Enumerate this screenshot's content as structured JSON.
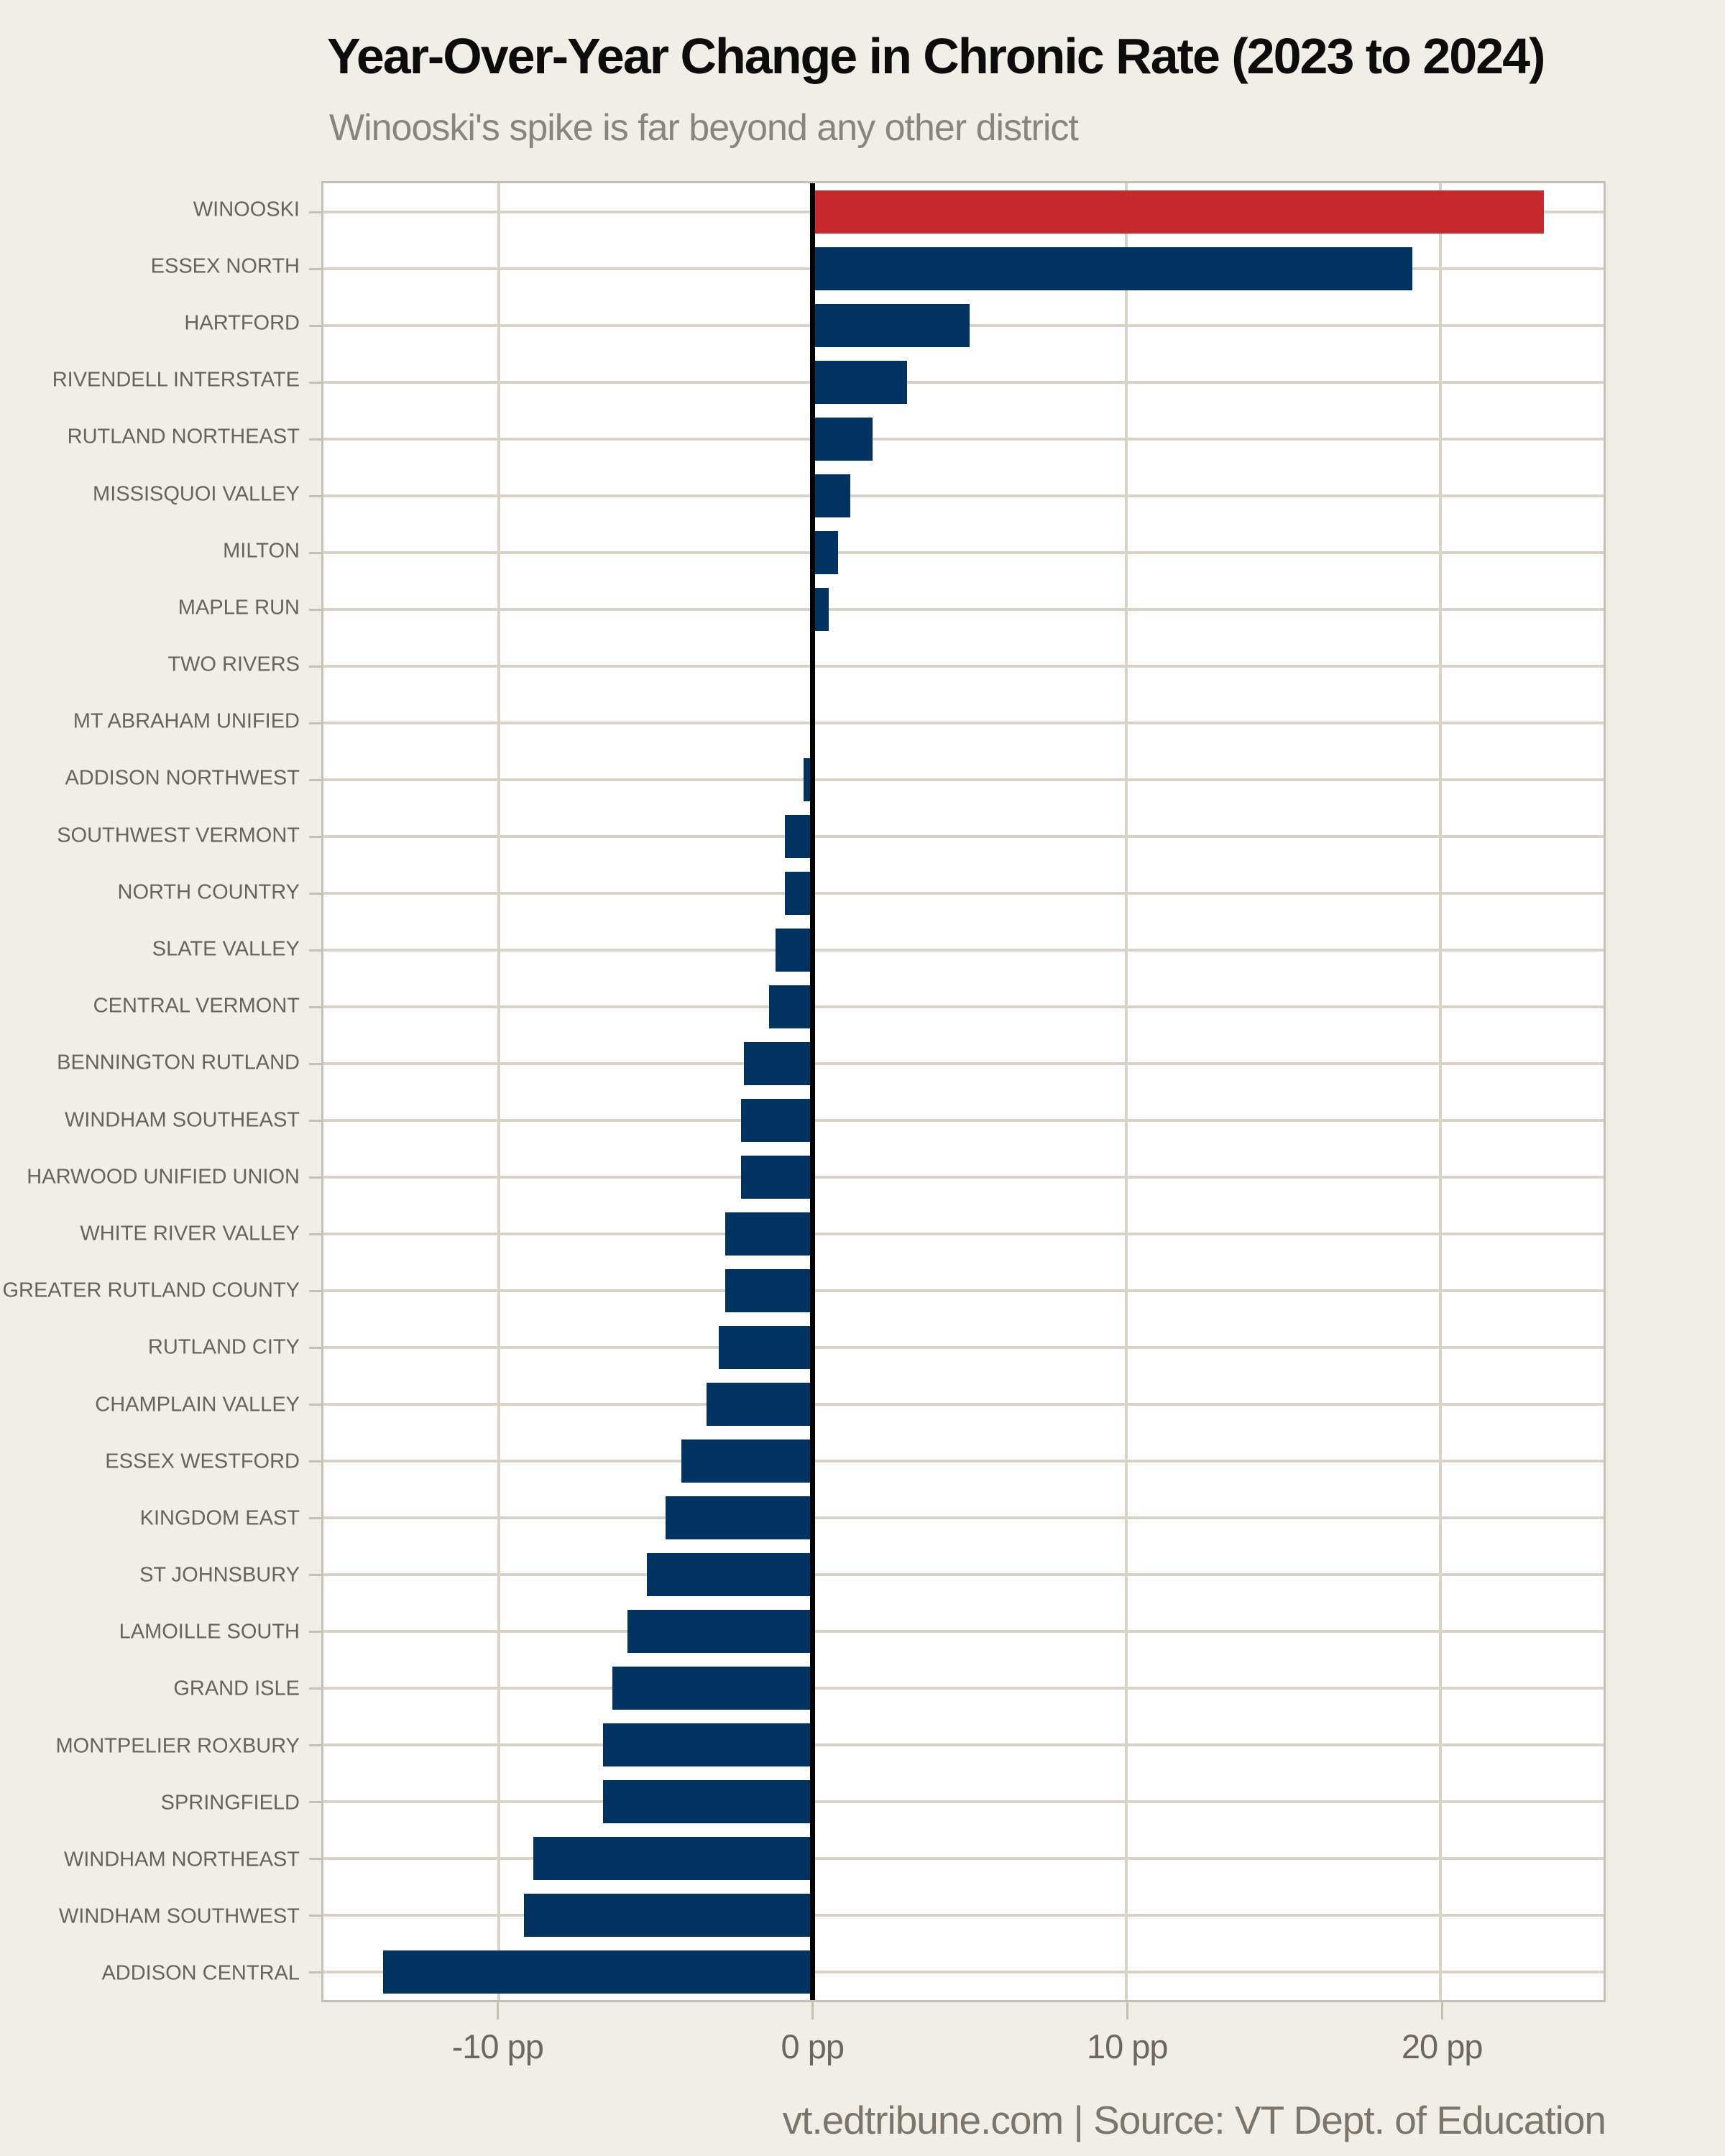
{
  "page": {
    "background": "#f1eee8",
    "plot_background": "#ffffff"
  },
  "header": {
    "title": "Year-Over-Year Change in Chronic Rate (2023 to 2024)",
    "subtitle": "Winooski's spike is far beyond any other district"
  },
  "footer": {
    "text": "vt.edtribune.com | Source: VT Dept. of Education"
  },
  "chart_data": {
    "type": "bar",
    "orientation": "horizontal",
    "title": "Year-Over-Year Change in Chronic Rate (2023 to 2024)",
    "subtitle": "Winooski's spike is far beyond any other district",
    "unit": "percentage points",
    "xlabel": "",
    "ylabel": "",
    "xlim": [
      -15.6,
      25.2
    ],
    "grid": "on",
    "categories": [
      "WINOOSKI",
      "ESSEX NORTH",
      "HARTFORD",
      "RIVENDELL INTERSTATE",
      "RUTLAND NORTHEAST",
      "MISSISQUOI VALLEY",
      "MILTON",
      "MAPLE RUN",
      "TWO RIVERS",
      "MT ABRAHAM UNIFIED",
      "ADDISON NORTHWEST",
      "SOUTHWEST VERMONT",
      "NORTH COUNTRY",
      "SLATE VALLEY",
      "CENTRAL VERMONT",
      "BENNINGTON RUTLAND",
      "WINDHAM SOUTHEAST",
      "HARWOOD UNIFIED UNION",
      "WHITE RIVER VALLEY",
      "GREATER RUTLAND COUNTY",
      "RUTLAND CITY",
      "CHAMPLAIN VALLEY",
      "ESSEX WESTFORD",
      "KINGDOM EAST",
      "ST JOHNSBURY",
      "LAMOILLE SOUTH",
      "GRAND ISLE",
      "MONTPELIER ROXBURY",
      "SPRINGFIELD",
      "WINDHAM NORTHEAST",
      "WINDHAM SOUTHWEST",
      "ADDISON CENTRAL"
    ],
    "values": [
      23.3,
      19.1,
      5.0,
      3.0,
      1.9,
      1.2,
      0.8,
      0.5,
      -0.1,
      -0.1,
      -0.3,
      -0.9,
      -0.9,
      -1.2,
      -1.4,
      -2.2,
      -2.3,
      -2.3,
      -2.8,
      -2.8,
      -3.0,
      -3.4,
      -4.2,
      -4.7,
      -5.3,
      -5.9,
      -6.4,
      -6.7,
      -6.7,
      -8.9,
      -9.2,
      -13.7
    ],
    "highlight": {
      "category": "WINOOSKI",
      "index": 0,
      "color": "#c5292c"
    },
    "bar_color": "#003262",
    "zero_line_color": "#000000",
    "gridline_color": "#d9d3c7",
    "vertical_gridlines_at": [
      -10,
      10,
      20
    ],
    "x_ticks": [
      {
        "value": -10,
        "label": "-10 pp"
      },
      {
        "value": 0,
        "label": "0 pp"
      },
      {
        "value": 10,
        "label": "10 pp"
      },
      {
        "value": 20,
        "label": "20 pp"
      }
    ],
    "legend": "none"
  }
}
